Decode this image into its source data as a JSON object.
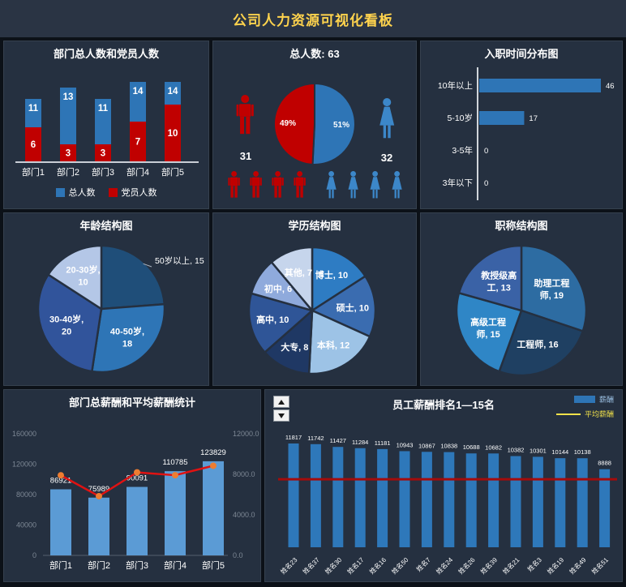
{
  "header": {
    "title": "公司人力资源可视化看板",
    "title_color": "#ffd34d"
  },
  "theme": {
    "background": "#0c1118",
    "panel": "#253040",
    "header_bg": "#2a3444",
    "text": "#ffffff",
    "axis_text": "#7d8794"
  },
  "chart_data": [
    {
      "id": "dept",
      "type": "bar",
      "variant": "stacked",
      "title": "部门总人数和党员人数",
      "categories": [
        "部门1",
        "部门2",
        "部门3",
        "部门4",
        "部门5"
      ],
      "series": [
        {
          "name": "总人数",
          "color": "#2e75b6",
          "values": [
            11,
            13,
            11,
            14,
            14
          ]
        },
        {
          "name": "党员人数",
          "color": "#c00000",
          "values": [
            6,
            3,
            3,
            7,
            10
          ]
        }
      ],
      "ylim": [
        0,
        14
      ],
      "legend_position": "bottom"
    },
    {
      "id": "gender",
      "type": "pie",
      "title": "总人数:  63",
      "total": 63,
      "slices": [
        {
          "label": "女",
          "value": 32,
          "pct_label": "51%",
          "color": "#2e75b6"
        },
        {
          "label": "男",
          "value": 31,
          "pct_label": "49%",
          "color": "#c00000"
        }
      ],
      "male_count": "31",
      "female_count": "32",
      "male_color": "#c00000",
      "female_color": "#3c87c9",
      "small_icons": {
        "male": 4,
        "female": 4
      }
    },
    {
      "id": "hire",
      "type": "bar",
      "orientation": "horizontal",
      "title": "入职时间分布图",
      "categories": [
        "10年以上",
        "5-10岁",
        "3-5年",
        "3年以下"
      ],
      "values": [
        46,
        17,
        0,
        0
      ],
      "color": "#2e75b6",
      "xlim": [
        0,
        46
      ]
    },
    {
      "id": "age",
      "type": "pie",
      "title": "年龄结构图",
      "slices": [
        {
          "label": "50岁以上",
          "value": 15,
          "color": "#1f4e79",
          "outside": true,
          "lines": [
            "50岁以上, 15"
          ]
        },
        {
          "label": "40-50岁",
          "value": 18,
          "color": "#2e75b6",
          "lines": [
            "40-50岁,",
            "18"
          ]
        },
        {
          "label": "30-40岁",
          "value": 20,
          "color": "#31549b",
          "lines": [
            "30-40岁,",
            "20"
          ]
        },
        {
          "label": "20-30岁",
          "value": 10,
          "color": "#b4c7e7",
          "lines": [
            "20-30岁,",
            "10"
          ]
        }
      ]
    },
    {
      "id": "edu",
      "type": "pie",
      "title": "学历结构图",
      "slices": [
        {
          "label": "博士",
          "value": 10,
          "color": "#2e7cc3",
          "lines": [
            "博士, 10"
          ]
        },
        {
          "label": "硕士",
          "value": 10,
          "color": "#3a6cb0",
          "lines": [
            "硕士, 10"
          ]
        },
        {
          "label": "本科",
          "value": 12,
          "color": "#9dc3e6",
          "lines": [
            "本科, 12"
          ]
        },
        {
          "label": "大专",
          "value": 8,
          "color": "#1f3864",
          "lines": [
            "大专, 8"
          ]
        },
        {
          "label": "高中",
          "value": 10,
          "color": "#2f5597",
          "lines": [
            "高中, 10"
          ]
        },
        {
          "label": "初中",
          "value": 6,
          "color": "#8faadc",
          "lines": [
            "初中, 6"
          ]
        },
        {
          "label": "其他",
          "value": 7,
          "color": "#c6d5ec",
          "lines": [
            "其他, 7"
          ]
        }
      ]
    },
    {
      "id": "jobtitle",
      "type": "pie",
      "title": "职称结构图",
      "slices": [
        {
          "label": "助理工程师",
          "value": 19,
          "color": "#2d6ca2",
          "lines": [
            "助理工程",
            "师, 19"
          ]
        },
        {
          "label": "工程师",
          "value": 16,
          "color": "#1f4062",
          "lines": [
            "工程师, 16"
          ]
        },
        {
          "label": "高级工程师",
          "value": 15,
          "color": "#2f86c6",
          "lines": [
            "高级工程",
            "师, 15"
          ]
        },
        {
          "label": "教授级高工",
          "value": 13,
          "color": "#3a62a6",
          "lines": [
            "教授级高",
            "工, 13"
          ]
        }
      ]
    },
    {
      "id": "salary",
      "type": "combo",
      "title": "部门总薪酬和平均薪酬统计",
      "categories": [
        "部门1",
        "部门2",
        "部门3",
        "部门4",
        "部门5"
      ],
      "bars": {
        "name": "总薪酬",
        "color": "#5b9bd5",
        "values": [
          86921,
          75989,
          90091,
          110785,
          123829
        ]
      },
      "line": {
        "name": "平均薪酬",
        "color": "#e01212",
        "marker_color": "#ed7d31",
        "values": [
          7902,
          5845,
          8190,
          7913,
          8845
        ]
      },
      "left_axis": {
        "ticks": [
          "160000",
          "120000",
          "80000",
          "40000",
          "0"
        ],
        "max": 160000
      },
      "right_axis": {
        "ticks": [
          "12000.0",
          "8000.0",
          "4000.0",
          "0.0"
        ],
        "max": 12000
      }
    },
    {
      "id": "ranking",
      "type": "bar",
      "title": "员工薪酬排名1—15名",
      "legend": [
        {
          "label": "薪酬",
          "color": "#2e75b6",
          "text_color": "#9fc5e8",
          "swatch": "bar"
        },
        {
          "label": "平均薪酬",
          "color": "#f2e24a",
          "text_color": "#f2e24a",
          "swatch": "line"
        }
      ],
      "categories": [
        "姓名23",
        "姓名37",
        "姓名30",
        "姓名17",
        "姓名16",
        "姓名50",
        "姓名7",
        "姓名24",
        "姓名26",
        "姓名39",
        "姓名21",
        "姓名3",
        "姓名19",
        "姓名49",
        "姓名51"
      ],
      "values": [
        11817,
        11742,
        11427,
        11284,
        11181,
        10943,
        10867,
        10838,
        10688,
        10682,
        10382,
        10301,
        10144,
        10138,
        8888
      ],
      "bar_color": "#2e78ba",
      "avg_line": {
        "value": 7740,
        "color": "#a50b0b"
      },
      "ylim": [
        0,
        12800
      ]
    }
  ]
}
